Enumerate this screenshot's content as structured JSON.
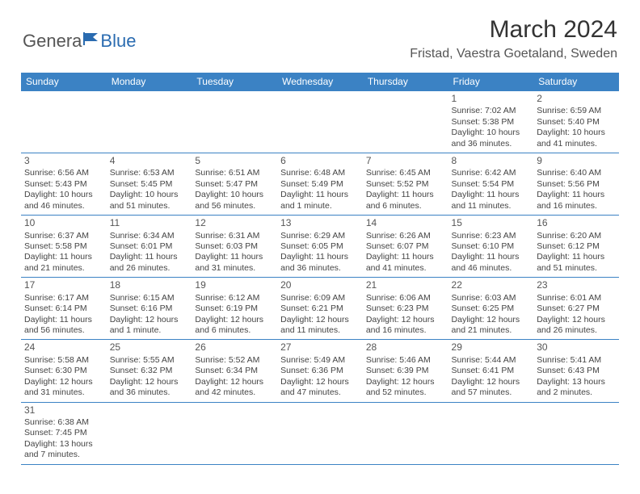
{
  "brand": {
    "part1": "Genera",
    "part2": "Blue"
  },
  "title": "March 2024",
  "location": "Fristad, Vaestra Goetaland, Sweden",
  "colors": {
    "header_bg": "#3b82c4",
    "header_text": "#ffffff",
    "cell_border": "#3b82c4",
    "text": "#444444",
    "title": "#333333",
    "location": "#555555",
    "brand_gray": "#555555",
    "brand_blue": "#2a6bb0"
  },
  "weekdays": [
    "Sunday",
    "Monday",
    "Tuesday",
    "Wednesday",
    "Thursday",
    "Friday",
    "Saturday"
  ],
  "weeks": [
    [
      null,
      null,
      null,
      null,
      null,
      {
        "n": "1",
        "sr": "Sunrise: 7:02 AM",
        "ss": "Sunset: 5:38 PM",
        "d1": "Daylight: 10 hours",
        "d2": "and 36 minutes."
      },
      {
        "n": "2",
        "sr": "Sunrise: 6:59 AM",
        "ss": "Sunset: 5:40 PM",
        "d1": "Daylight: 10 hours",
        "d2": "and 41 minutes."
      }
    ],
    [
      {
        "n": "3",
        "sr": "Sunrise: 6:56 AM",
        "ss": "Sunset: 5:43 PM",
        "d1": "Daylight: 10 hours",
        "d2": "and 46 minutes."
      },
      {
        "n": "4",
        "sr": "Sunrise: 6:53 AM",
        "ss": "Sunset: 5:45 PM",
        "d1": "Daylight: 10 hours",
        "d2": "and 51 minutes."
      },
      {
        "n": "5",
        "sr": "Sunrise: 6:51 AM",
        "ss": "Sunset: 5:47 PM",
        "d1": "Daylight: 10 hours",
        "d2": "and 56 minutes."
      },
      {
        "n": "6",
        "sr": "Sunrise: 6:48 AM",
        "ss": "Sunset: 5:49 PM",
        "d1": "Daylight: 11 hours",
        "d2": "and 1 minute."
      },
      {
        "n": "7",
        "sr": "Sunrise: 6:45 AM",
        "ss": "Sunset: 5:52 PM",
        "d1": "Daylight: 11 hours",
        "d2": "and 6 minutes."
      },
      {
        "n": "8",
        "sr": "Sunrise: 6:42 AM",
        "ss": "Sunset: 5:54 PM",
        "d1": "Daylight: 11 hours",
        "d2": "and 11 minutes."
      },
      {
        "n": "9",
        "sr": "Sunrise: 6:40 AM",
        "ss": "Sunset: 5:56 PM",
        "d1": "Daylight: 11 hours",
        "d2": "and 16 minutes."
      }
    ],
    [
      {
        "n": "10",
        "sr": "Sunrise: 6:37 AM",
        "ss": "Sunset: 5:58 PM",
        "d1": "Daylight: 11 hours",
        "d2": "and 21 minutes."
      },
      {
        "n": "11",
        "sr": "Sunrise: 6:34 AM",
        "ss": "Sunset: 6:01 PM",
        "d1": "Daylight: 11 hours",
        "d2": "and 26 minutes."
      },
      {
        "n": "12",
        "sr": "Sunrise: 6:31 AM",
        "ss": "Sunset: 6:03 PM",
        "d1": "Daylight: 11 hours",
        "d2": "and 31 minutes."
      },
      {
        "n": "13",
        "sr": "Sunrise: 6:29 AM",
        "ss": "Sunset: 6:05 PM",
        "d1": "Daylight: 11 hours",
        "d2": "and 36 minutes."
      },
      {
        "n": "14",
        "sr": "Sunrise: 6:26 AM",
        "ss": "Sunset: 6:07 PM",
        "d1": "Daylight: 11 hours",
        "d2": "and 41 minutes."
      },
      {
        "n": "15",
        "sr": "Sunrise: 6:23 AM",
        "ss": "Sunset: 6:10 PM",
        "d1": "Daylight: 11 hours",
        "d2": "and 46 minutes."
      },
      {
        "n": "16",
        "sr": "Sunrise: 6:20 AM",
        "ss": "Sunset: 6:12 PM",
        "d1": "Daylight: 11 hours",
        "d2": "and 51 minutes."
      }
    ],
    [
      {
        "n": "17",
        "sr": "Sunrise: 6:17 AM",
        "ss": "Sunset: 6:14 PM",
        "d1": "Daylight: 11 hours",
        "d2": "and 56 minutes."
      },
      {
        "n": "18",
        "sr": "Sunrise: 6:15 AM",
        "ss": "Sunset: 6:16 PM",
        "d1": "Daylight: 12 hours",
        "d2": "and 1 minute."
      },
      {
        "n": "19",
        "sr": "Sunrise: 6:12 AM",
        "ss": "Sunset: 6:19 PM",
        "d1": "Daylight: 12 hours",
        "d2": "and 6 minutes."
      },
      {
        "n": "20",
        "sr": "Sunrise: 6:09 AM",
        "ss": "Sunset: 6:21 PM",
        "d1": "Daylight: 12 hours",
        "d2": "and 11 minutes."
      },
      {
        "n": "21",
        "sr": "Sunrise: 6:06 AM",
        "ss": "Sunset: 6:23 PM",
        "d1": "Daylight: 12 hours",
        "d2": "and 16 minutes."
      },
      {
        "n": "22",
        "sr": "Sunrise: 6:03 AM",
        "ss": "Sunset: 6:25 PM",
        "d1": "Daylight: 12 hours",
        "d2": "and 21 minutes."
      },
      {
        "n": "23",
        "sr": "Sunrise: 6:01 AM",
        "ss": "Sunset: 6:27 PM",
        "d1": "Daylight: 12 hours",
        "d2": "and 26 minutes."
      }
    ],
    [
      {
        "n": "24",
        "sr": "Sunrise: 5:58 AM",
        "ss": "Sunset: 6:30 PM",
        "d1": "Daylight: 12 hours",
        "d2": "and 31 minutes."
      },
      {
        "n": "25",
        "sr": "Sunrise: 5:55 AM",
        "ss": "Sunset: 6:32 PM",
        "d1": "Daylight: 12 hours",
        "d2": "and 36 minutes."
      },
      {
        "n": "26",
        "sr": "Sunrise: 5:52 AM",
        "ss": "Sunset: 6:34 PM",
        "d1": "Daylight: 12 hours",
        "d2": "and 42 minutes."
      },
      {
        "n": "27",
        "sr": "Sunrise: 5:49 AM",
        "ss": "Sunset: 6:36 PM",
        "d1": "Daylight: 12 hours",
        "d2": "and 47 minutes."
      },
      {
        "n": "28",
        "sr": "Sunrise: 5:46 AM",
        "ss": "Sunset: 6:39 PM",
        "d1": "Daylight: 12 hours",
        "d2": "and 52 minutes."
      },
      {
        "n": "29",
        "sr": "Sunrise: 5:44 AM",
        "ss": "Sunset: 6:41 PM",
        "d1": "Daylight: 12 hours",
        "d2": "and 57 minutes."
      },
      {
        "n": "30",
        "sr": "Sunrise: 5:41 AM",
        "ss": "Sunset: 6:43 PM",
        "d1": "Daylight: 13 hours",
        "d2": "and 2 minutes."
      }
    ],
    [
      {
        "n": "31",
        "sr": "Sunrise: 6:38 AM",
        "ss": "Sunset: 7:45 PM",
        "d1": "Daylight: 13 hours",
        "d2": "and 7 minutes."
      },
      null,
      null,
      null,
      null,
      null,
      null
    ]
  ]
}
